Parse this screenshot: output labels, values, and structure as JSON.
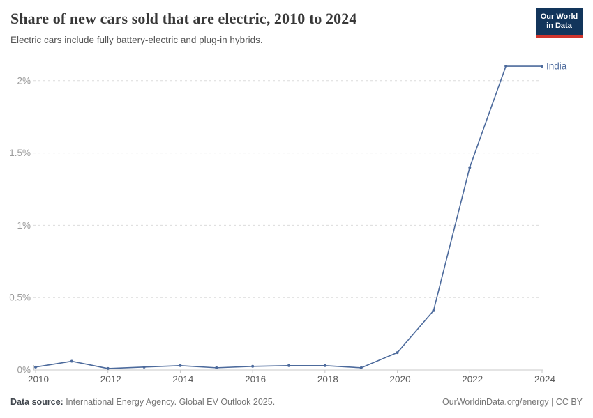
{
  "header": {
    "title": "Share of new cars sold that are electric, 2010 to 2024",
    "subtitle": "Electric cars include fully battery-electric and plug-in hybrids.",
    "logo": {
      "line1": "Our World",
      "line2": "in Data",
      "bg_color": "#12355b",
      "accent_color": "#d0342c"
    }
  },
  "chart_data": {
    "type": "line",
    "title": "Share of new cars sold that are electric, 2010 to 2024",
    "x": [
      2010,
      2011,
      2012,
      2013,
      2014,
      2015,
      2016,
      2017,
      2018,
      2019,
      2020,
      2021,
      2022,
      2023,
      2024
    ],
    "series": [
      {
        "name": "India",
        "color": "#4c6a9c",
        "values": [
          0.02,
          0.06,
          0.01,
          0.02,
          0.03,
          0.015,
          0.025,
          0.03,
          0.03,
          0.015,
          0.12,
          0.41,
          1.4,
          2.1,
          2.1
        ]
      }
    ],
    "xlim": [
      2010,
      2024
    ],
    "ylim": [
      0,
      2.15
    ],
    "xticks": [
      2010,
      2012,
      2014,
      2016,
      2018,
      2020,
      2022,
      2024
    ],
    "yticks": [
      0,
      0.5,
      1,
      1.5,
      2
    ],
    "ytick_labels": [
      "0%",
      "0.5%",
      "1%",
      "1.5%",
      "2%"
    ],
    "unit": "%",
    "grid": "dashed-horizontal",
    "legend_position": "end-of-line",
    "colors": {
      "gridline": "#dcdcdc",
      "axis": "#c9c9c9",
      "ytick_label": "#9c9c9c",
      "xtick_label": "#5e5e5e"
    }
  },
  "footer": {
    "source_label": "Data source:",
    "source_text": " International Energy Agency. Global EV Outlook 2025.",
    "credit": "OurWorldinData.org/energy | CC BY"
  }
}
